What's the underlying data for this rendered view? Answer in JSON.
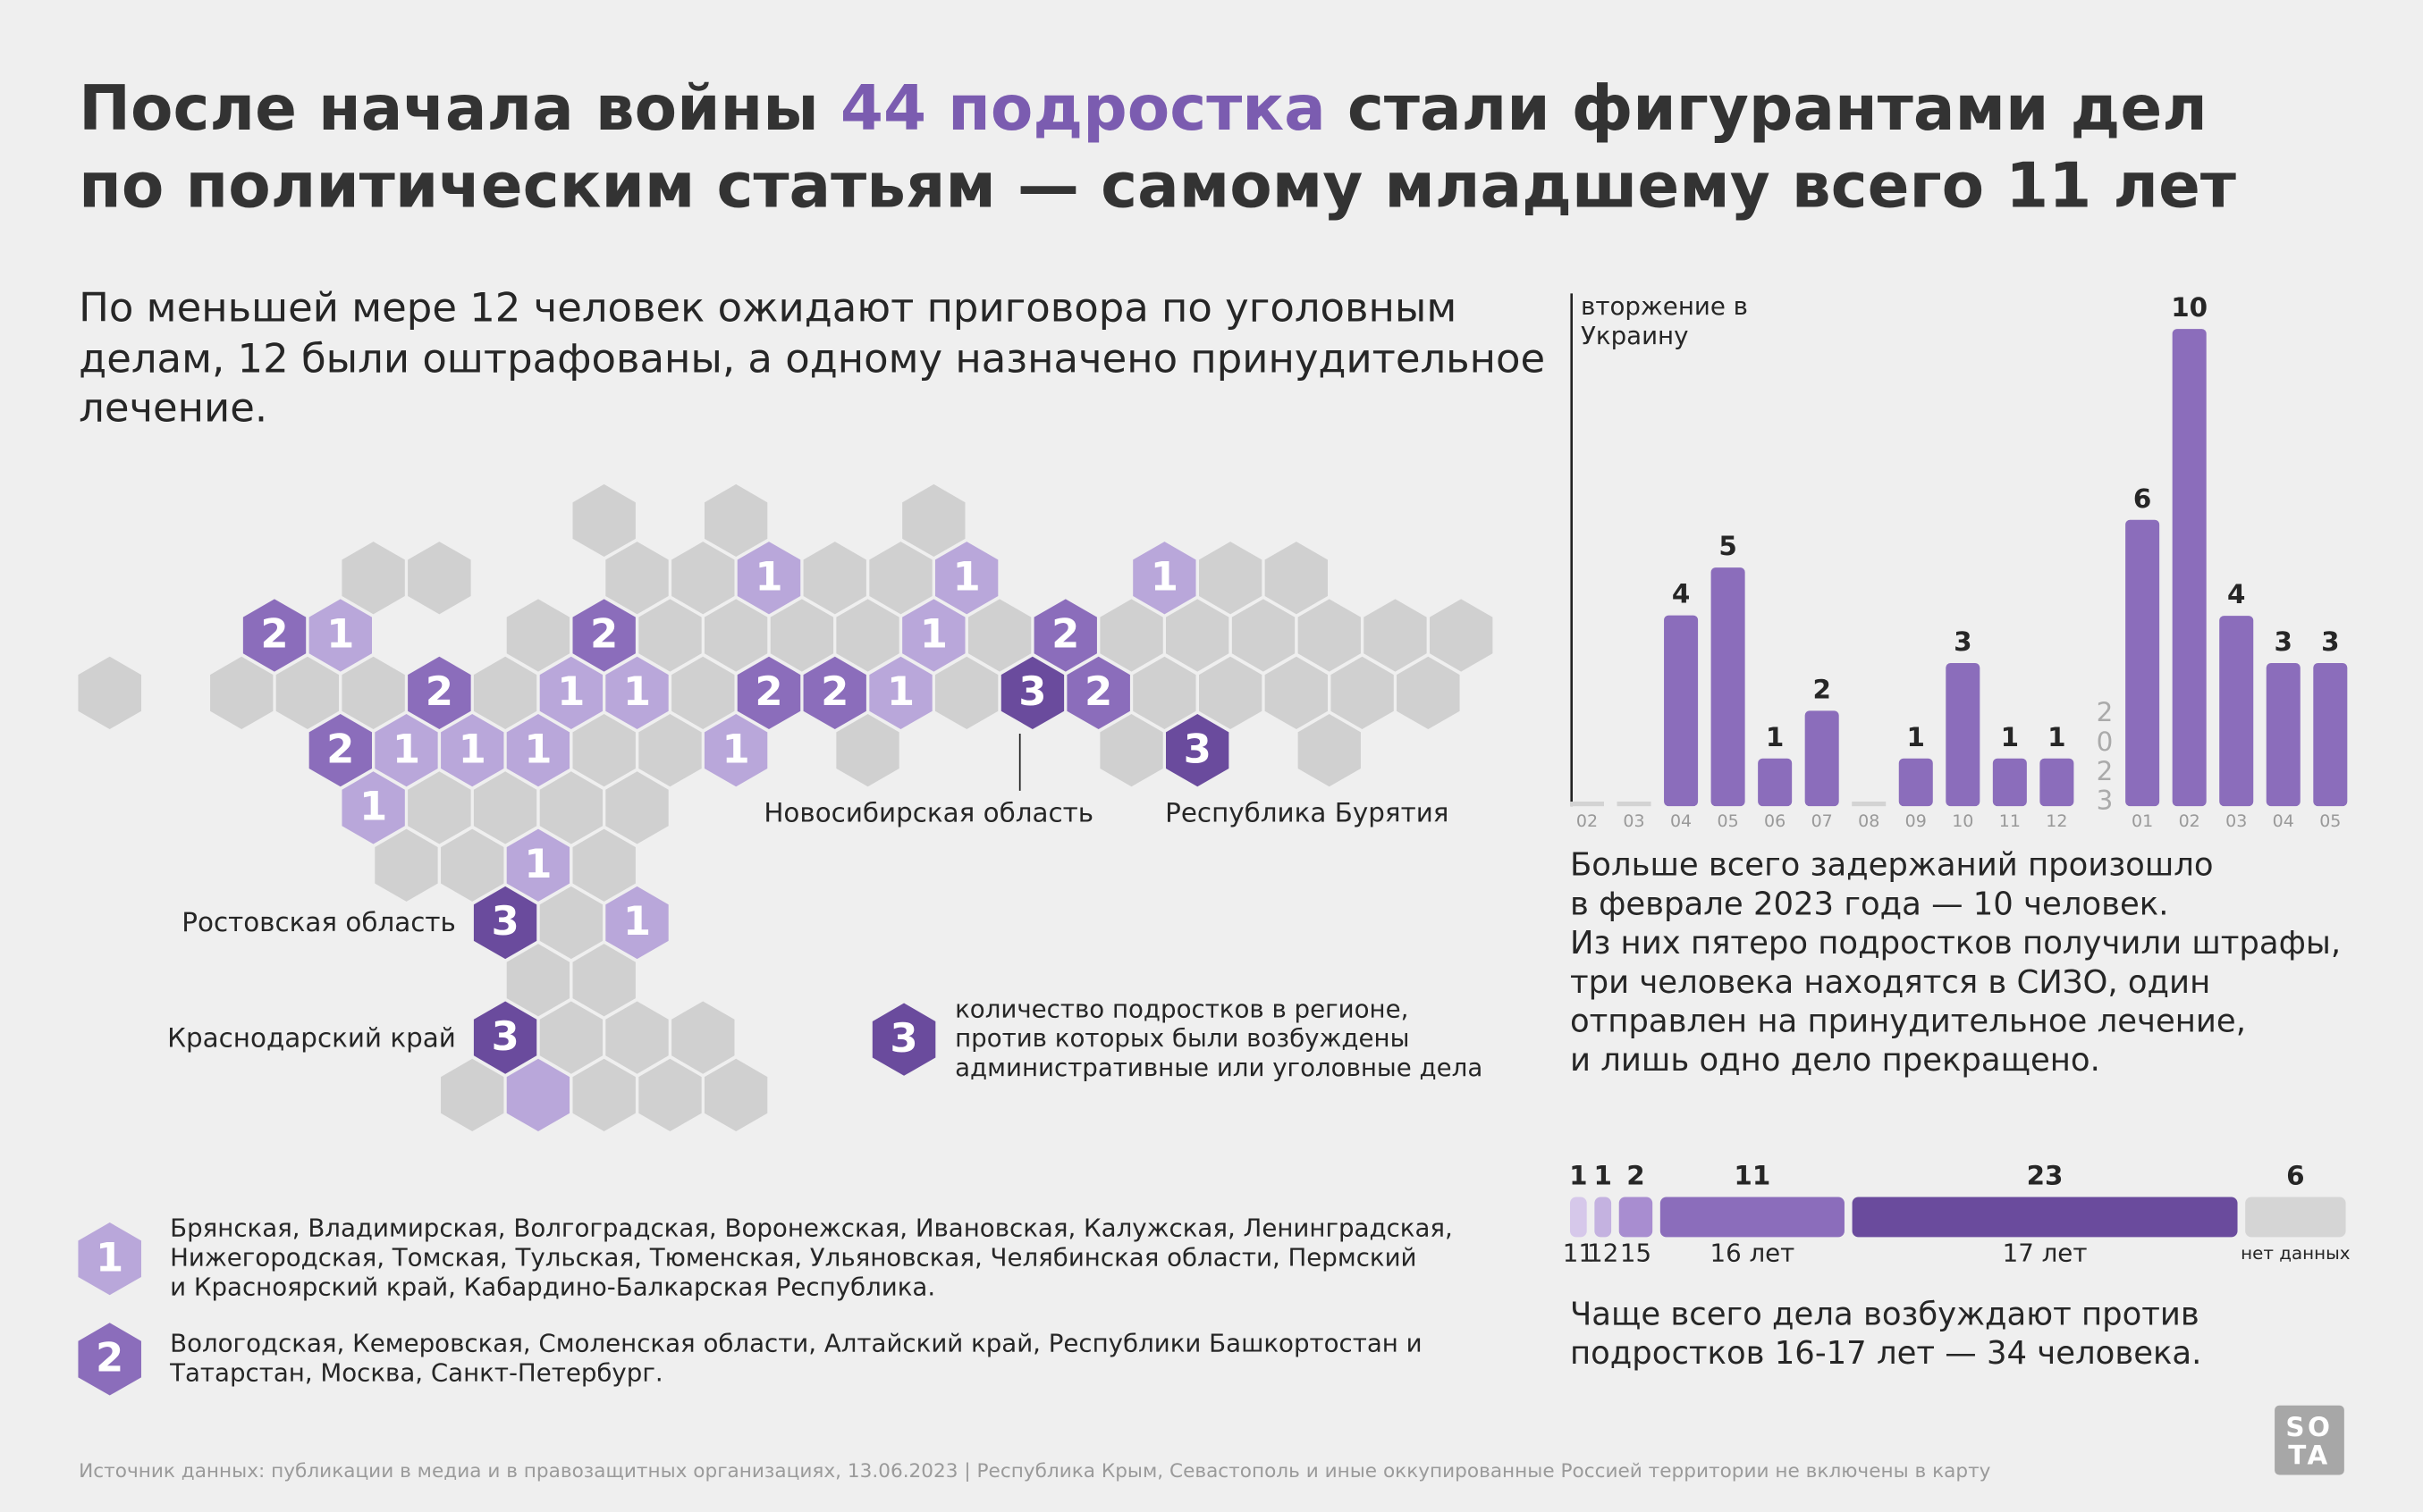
{
  "header": {
    "title_parts": [
      "После начала войны",
      "44 подростка",
      "стали фигурантами дел",
      "по политическим статьям — самому младшему всего 11 лет"
    ],
    "subtitle_lines": [
      "По меньшей мере 12 человек ожидают приговора по уголовным",
      "делам, 12 были оштрафованы, а одному назначено принудительное",
      "лечение."
    ]
  },
  "map": {
    "regions": [
      1,
      1,
      1,
      2,
      1,
      2,
      1,
      2,
      2,
      1,
      1,
      2,
      2,
      1,
      3,
      2,
      2,
      1,
      1,
      1,
      1,
      3,
      1,
      1,
      3,
      1,
      3
    ],
    "palette": [
      "#b9a7da",
      "#8b6dbb",
      "#6a4b9d"
    ],
    "labels": [
      "Новосибирская область",
      "Республика Бурятия",
      "Ростовская область",
      "Краснодарский край"
    ],
    "legend": {
      "value": 3,
      "lines": [
        "количество подростков в регионе,",
        "против которых были возбуждены",
        "административные или уголовные дела"
      ]
    },
    "groups": [
      {
        "value": 1,
        "lines": [
          "Брянская, Владимирская, Волгоградская, Воронежская, Ивановская, Калужская, Ленинградская,",
          "Нижегородская, Томская, Тульская, Тюменская, Ульяновская, Челябинская области, Пермский",
          "и Красноярский край, Кабардино-Балкарская Республика."
        ]
      },
      {
        "value": 2,
        "lines": [
          "Вологодская, Кемеровская, Смоленская области, Алтайский край, Республики Башкортостан и",
          "Татарстан, Москва, Санкт-Петербург."
        ]
      }
    ]
  },
  "chart_data": [
    {
      "type": "bar",
      "categories": [
        "02",
        "03",
        "04",
        "05",
        "06",
        "07",
        "08",
        "09",
        "10",
        "11",
        "12",
        "01",
        "02",
        "03",
        "04",
        "05"
      ],
      "values": [
        0,
        0,
        4,
        5,
        1,
        2,
        0,
        1,
        3,
        1,
        1,
        6,
        10,
        3.99,
        3,
        3
      ],
      "value_labels": [
        null,
        null,
        "4",
        "5",
        "1",
        "2",
        null,
        "1",
        "3",
        "1",
        "1",
        "6",
        "10",
        "4",
        "3",
        "3"
      ],
      "year_label": "2023",
      "annotation": [
        "вторжение в",
        "Украину"
      ],
      "color": "#8b6dbb",
      "zero_color": "#d3d3d3",
      "ylim": [
        0,
        10
      ]
    },
    {
      "type": "stacked-bar",
      "categories": [
        "11",
        "12",
        "15",
        "16 лет",
        "17 лет",
        "нет данных"
      ],
      "values": [
        1,
        1,
        2,
        11,
        23,
        6
      ],
      "colors": [
        "#d6c8ea",
        "#c4b2e0",
        "#a88dd0",
        "#8b6dbb",
        "#6a4b9d",
        "#d5d5d5"
      ]
    }
  ],
  "notes": {
    "months_text_lines": [
      "Больше всего задержаний произошло",
      "в феврале 2023 года — 10 человек.",
      "Из них пятеро подростков получили штрафы,",
      "три человека находятся в СИЗО, один",
      "отправлен на принудительное лечение,",
      "и лишь одно дело прекращено."
    ],
    "age_text_lines": [
      "Чаще всего дела возбуждают против",
      "подростков 16-17 лет — 34 человека."
    ]
  },
  "footer": {
    "source": "Источник данных: публикации в медиа и в правозащитных организациях, 13.06.2023 | Республика Крым, Севастополь и иные оккупированные Россией территории не включены в карту",
    "logo": [
      "SO",
      "TA"
    ]
  }
}
